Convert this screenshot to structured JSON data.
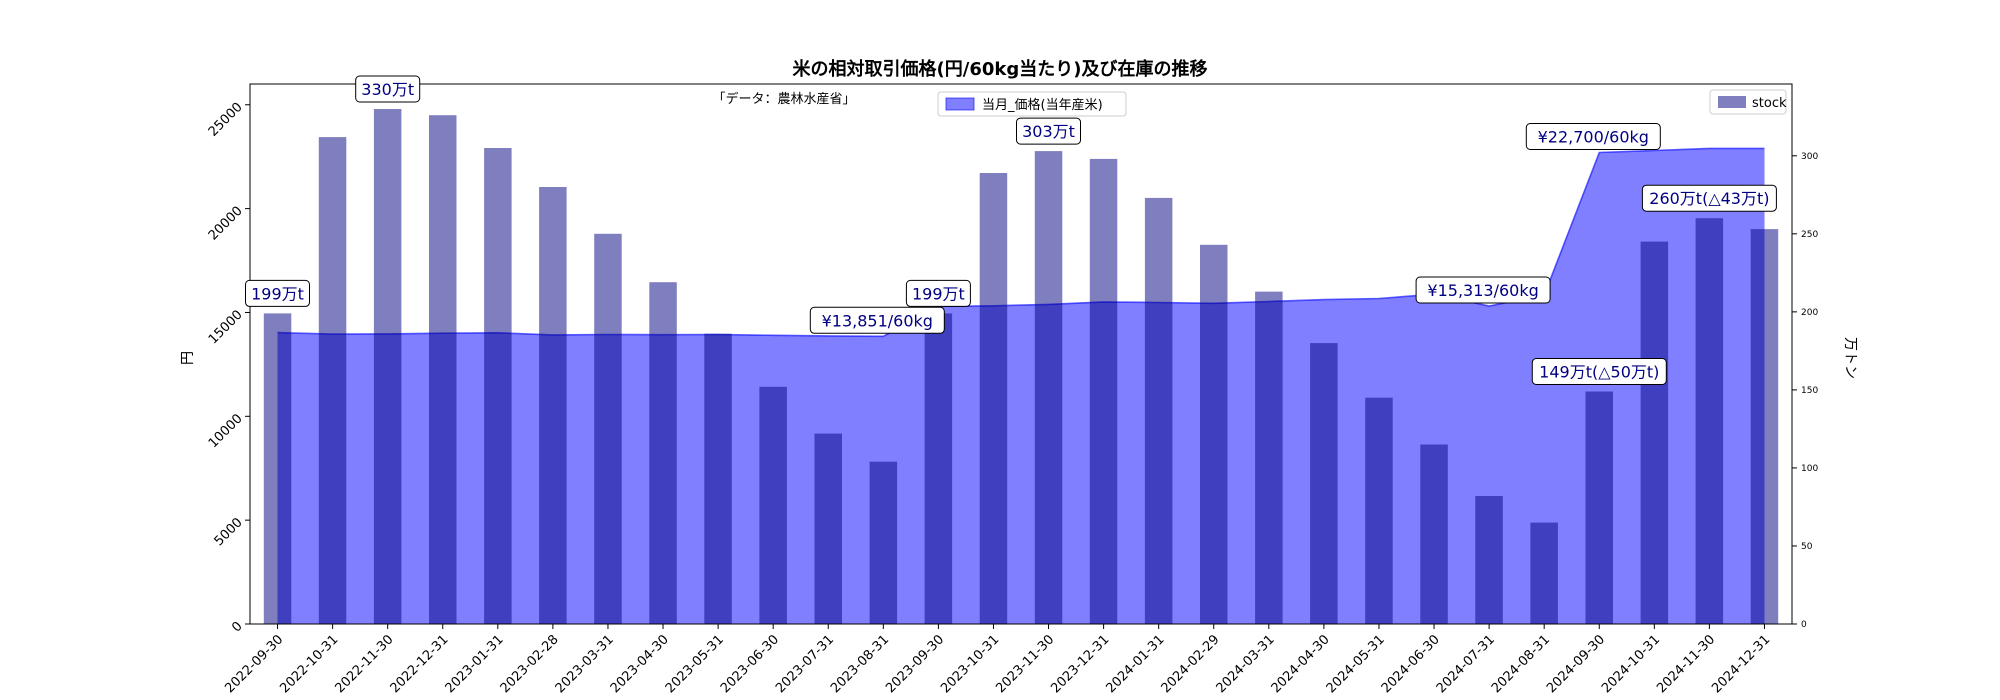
{
  "chart_data": {
    "type": "bar+area",
    "title": "米の相対取引価格(円/60kg当たり)及び在庫の推移",
    "source_note": "「データ：農林水産省」",
    "x": [
      "2022-09-30",
      "2022-10-31",
      "2022-11-30",
      "2022-12-31",
      "2023-01-31",
      "2023-02-28",
      "2023-03-31",
      "2023-04-30",
      "2023-05-31",
      "2023-06-30",
      "2023-07-31",
      "2023-08-31",
      "2023-09-30",
      "2023-10-31",
      "2023-11-30",
      "2023-12-31",
      "2024-01-31",
      "2024-02-29",
      "2024-03-31",
      "2024-04-30",
      "2024-05-31",
      "2024-06-30",
      "2024-07-31",
      "2024-08-31",
      "2024-09-30",
      "2024-10-31",
      "2024-11-30",
      "2024-12-31"
    ],
    "ylabel": "円",
    "y2label": "万トン",
    "ylim": [
      0,
      26000
    ],
    "y2lim": [
      0,
      346
    ],
    "yticks": [
      0,
      5000,
      10000,
      15000,
      20000,
      25000
    ],
    "y2ticks": [
      0,
      50,
      100,
      150,
      200,
      250,
      300
    ],
    "series": [
      {
        "name": "当月_価格(当年産米)",
        "kind": "area",
        "axis": "left",
        "color": "#0000ff",
        "values": [
          14030,
          13960,
          13970,
          14000,
          14020,
          13920,
          13940,
          13930,
          13940,
          13900,
          13870,
          13851,
          15290,
          15320,
          15390,
          15510,
          15480,
          15440,
          15530,
          15620,
          15670,
          15880,
          15313,
          15830,
          22700,
          22800,
          22900,
          22900
        ]
      },
      {
        "name": "stock",
        "kind": "bar",
        "axis": "right",
        "color": "#000080",
        "values": [
          199,
          312,
          330,
          326,
          305,
          280,
          250,
          219,
          186,
          152,
          122,
          104,
          199,
          289,
          303,
          298,
          273,
          243,
          213,
          180,
          145,
          115,
          82,
          65,
          149,
          245,
          260,
          253
        ]
      }
    ],
    "annotations": [
      {
        "text": "199万t",
        "index": 0,
        "axis": "right",
        "value": 199
      },
      {
        "text": "330万t",
        "index": 2,
        "axis": "right",
        "value": 330
      },
      {
        "text": "¥13,851/60kg",
        "index": 11,
        "axis": "left",
        "value": 13851
      },
      {
        "text": "199万t",
        "index": 12,
        "axis": "right",
        "value": 199
      },
      {
        "text": "303万t",
        "index": 14,
        "axis": "right",
        "value": 303
      },
      {
        "text": "¥15,313/60kg",
        "index": 22,
        "axis": "left",
        "value": 15313
      },
      {
        "text": "¥22,700/60kg",
        "index": 24,
        "axis": "left",
        "value": 22700
      },
      {
        "text": "149万t(△50万t)",
        "index": 24,
        "axis": "right",
        "value": 149
      },
      {
        "text": "260万t(△43万t)",
        "index": 26,
        "axis": "right",
        "value": 260
      }
    ],
    "legend": [
      {
        "label": "当月_価格(当年産米)",
        "placement": "top-center"
      },
      {
        "label": "stock",
        "placement": "top-right"
      }
    ]
  }
}
